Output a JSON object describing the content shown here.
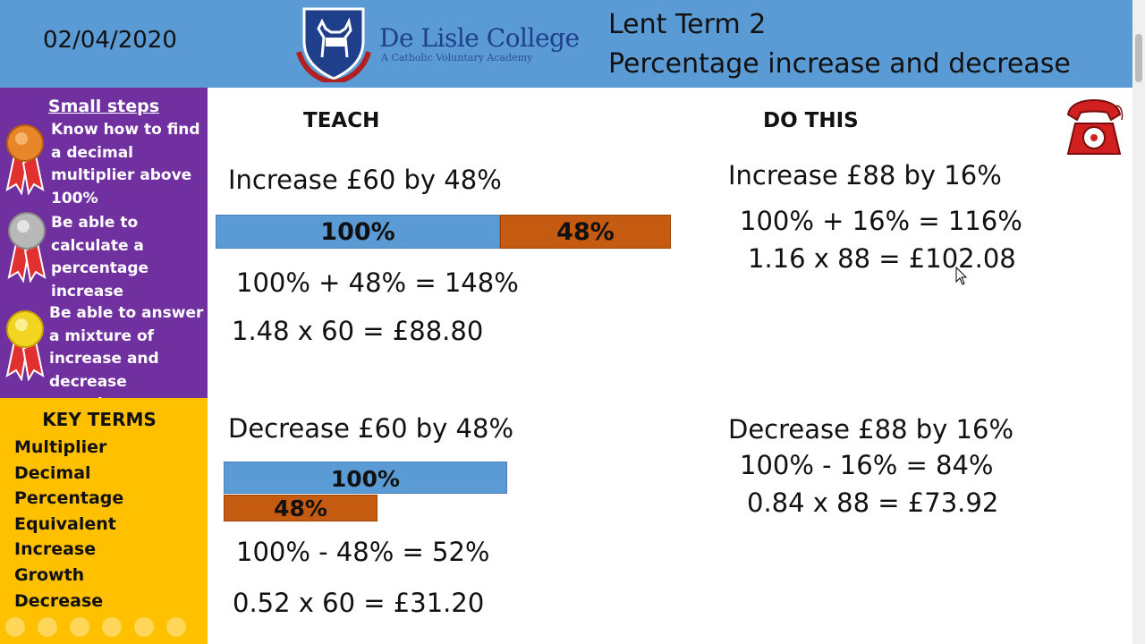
{
  "header": {
    "date": "02/04/2020",
    "college_name": "De Lisle College",
    "college_sub": "A Catholic Voluntary Academy",
    "term": "Lent Term 2",
    "topic": "Percentage increase and decrease"
  },
  "small_steps": {
    "title": "Small steps",
    "items": [
      {
        "text": "Know how to find a decimal multiplier above 100%",
        "medal": "bronze"
      },
      {
        "text": "Be able to calculate a percentage increase",
        "medal": "silver"
      },
      {
        "text": "Be able to answer a mixture of increase and decrease questions",
        "medal": "gold"
      }
    ]
  },
  "key_terms": {
    "title": "KEY TERMS",
    "items": [
      "Multiplier",
      "Decimal",
      "Percentage",
      "Equivalent",
      "Increase",
      "Growth",
      "Decrease"
    ]
  },
  "teach": {
    "heading": "TEACH",
    "increase": {
      "question": "Increase £60 by 48%",
      "bar_base": "100%",
      "bar_add": "48%",
      "step1": "100% + 48% = 148%",
      "step2": "1.48 x 60 = £88.80"
    },
    "decrease": {
      "question": "Decrease £60 by 48%",
      "bar_base": "100%",
      "bar_sub": "48%",
      "step1": "100% - 48% = 52%",
      "step2": "0.52 x 60 = £31.20"
    }
  },
  "do_this": {
    "heading": "DO THIS",
    "increase": {
      "question": "Increase £88 by 16%",
      "step1": "100% + 16% = 116%",
      "step2": "1.16 x 88 = £102.08"
    },
    "decrease": {
      "question": "Decrease £88 by 16%",
      "step1": "100% - 16% = 84%",
      "step2": "0.84 x 88 = £73.92"
    }
  },
  "colors": {
    "header": "#5b9bd5",
    "steps_panel": "#7030a0",
    "terms_panel": "#ffc000",
    "bar_blue": "#5b9bd5",
    "bar_orange": "#c55a11"
  },
  "icons": [
    "crest-logo-icon",
    "bronze-medal-icon",
    "silver-medal-icon",
    "gold-medal-icon",
    "red-telephone-icon",
    "mouse-cursor-icon"
  ]
}
